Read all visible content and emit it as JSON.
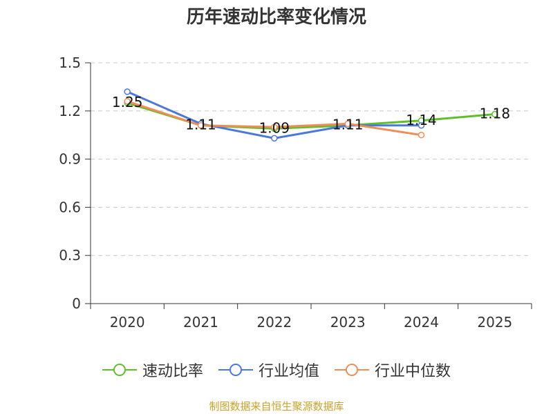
{
  "chart_data": {
    "type": "line",
    "title": "历年速动比率变化情况",
    "categories": [
      "2020",
      "2021",
      "2022",
      "2023",
      "2024",
      "2025"
    ],
    "ylim": [
      0,
      1.5
    ],
    "yticks": [
      "0",
      "0.3",
      "0.6",
      "0.9",
      "1.2",
      "1.5"
    ],
    "ytick_values": [
      0,
      0.3,
      0.6,
      0.9,
      1.2,
      1.5
    ],
    "grid": "horizontal dashed",
    "legend_position": "bottom-center",
    "series": [
      {
        "name": "速动比率",
        "color": "#5fbf2a",
        "values": [
          1.25,
          1.11,
          1.09,
          1.11,
          1.14,
          1.18
        ],
        "labels": [
          "1.25",
          "1.11",
          "1.09",
          "1.11",
          "1.14",
          "1.18"
        ]
      },
      {
        "name": "行业均值",
        "color": "#4a78db",
        "values": [
          1.32,
          1.12,
          1.03,
          1.11,
          1.11,
          null
        ]
      },
      {
        "name": "行业中位数",
        "color": "#f08c55",
        "values": [
          1.26,
          1.11,
          1.1,
          1.12,
          1.05,
          null
        ]
      }
    ],
    "source": "制图数据来自恒生聚源数据库"
  }
}
